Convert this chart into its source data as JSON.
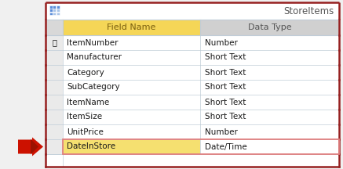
{
  "title": "StoreItems",
  "col1_header": "Field Name",
  "col2_header": "Data Type",
  "rows": [
    [
      "ItemNumber",
      "Number"
    ],
    [
      "Manufacturer",
      "Short Text"
    ],
    [
      "Category",
      "Short Text"
    ],
    [
      "SubCategory",
      "Short Text"
    ],
    [
      "ItemName",
      "Short Text"
    ],
    [
      "ItemSize",
      "Short Text"
    ],
    [
      "UnitPrice",
      "Number"
    ],
    [
      "DateInStore",
      "Date/Time"
    ]
  ],
  "primary_key_row": 0,
  "selected_row": 7,
  "header_bg": "#F5D657",
  "header_text": "#7B6010",
  "data_type_header_bg": "#D8D8D8",
  "data_type_header_text": "#555555",
  "title_bg": "#FFFFFF",
  "title_text": "#555555",
  "row_bg": "#FFFFFF",
  "icon_col_bg": "#E8E8E8",
  "grid_color": "#C0CDD8",
  "selected_row_border": "#E08080",
  "selected_row_field_bg": "#F5E070",
  "outer_border": "#962020",
  "arrow_color": "#CC1100",
  "arrow_dark": "#881100",
  "fig_bg": "#F0F0F0"
}
